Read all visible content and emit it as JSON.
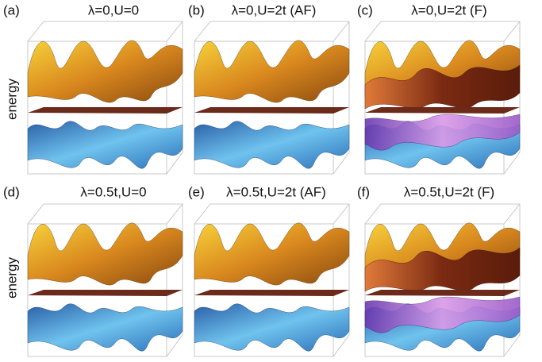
{
  "rows": [
    {
      "y_label": "energy",
      "panels": [
        {
          "label": "(a)",
          "title": "λ=0,U=0"
        },
        {
          "label": "(b)",
          "title": "λ=0,U=2t (AF)"
        },
        {
          "label": "(c)",
          "title": "λ=0,U=2t (F)"
        }
      ]
    },
    {
      "y_label": "energy",
      "panels": [
        {
          "label": "(d)",
          "title": "λ=0.5t,U=0"
        },
        {
          "label": "(e)",
          "title": "λ=0.5t,U=2t (AF)"
        },
        {
          "label": "(f)",
          "title": "λ=0.5t,U=2t (F)"
        }
      ]
    }
  ]
}
